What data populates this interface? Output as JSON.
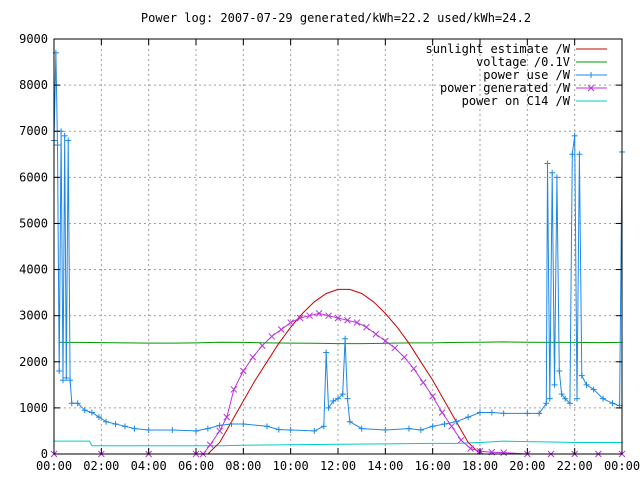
{
  "chart_data": {
    "type": "line",
    "title": "Power log: 2007-07-29 generated/kWh=22.2 used/kWh=24.2",
    "xlabel": "",
    "ylabel": "",
    "x_unit": "hours since 00:00",
    "xlim": [
      0,
      24
    ],
    "ylim": [
      0,
      9000
    ],
    "x_ticks": [
      {
        "value": 0,
        "label": "00:00"
      },
      {
        "value": 2,
        "label": "02:00"
      },
      {
        "value": 4,
        "label": "04:00"
      },
      {
        "value": 6,
        "label": "06:00"
      },
      {
        "value": 8,
        "label": "08:00"
      },
      {
        "value": 10,
        "label": "10:00"
      },
      {
        "value": 12,
        "label": "12:00"
      },
      {
        "value": 14,
        "label": "14:00"
      },
      {
        "value": 16,
        "label": "16:00"
      },
      {
        "value": 18,
        "label": "18:00"
      },
      {
        "value": 20,
        "label": "20:00"
      },
      {
        "value": 22,
        "label": "22:00"
      },
      {
        "value": 24,
        "label": "00:00"
      }
    ],
    "y_ticks": [
      {
        "value": 0,
        "label": "0"
      },
      {
        "value": 1000,
        "label": "1000"
      },
      {
        "value": 2000,
        "label": "2000"
      },
      {
        "value": 3000,
        "label": "3000"
      },
      {
        "value": 4000,
        "label": "4000"
      },
      {
        "value": 5000,
        "label": "5000"
      },
      {
        "value": 6000,
        "label": "6000"
      },
      {
        "value": 7000,
        "label": "7000"
      },
      {
        "value": 8000,
        "label": "8000"
      },
      {
        "value": 9000,
        "label": "9000"
      }
    ],
    "grid": true,
    "legend_position": "top-right",
    "series": [
      {
        "name": "sunlight estimate /W",
        "color": "#cc0000",
        "marker": "none",
        "points": [
          [
            6.5,
            0
          ],
          [
            7,
            250
          ],
          [
            7.5,
            700
          ],
          [
            8,
            1150
          ],
          [
            8.5,
            1600
          ],
          [
            9,
            2000
          ],
          [
            9.5,
            2400
          ],
          [
            10,
            2750
          ],
          [
            10.5,
            3050
          ],
          [
            11,
            3300
          ],
          [
            11.5,
            3480
          ],
          [
            12,
            3570
          ],
          [
            12.5,
            3570
          ],
          [
            13,
            3480
          ],
          [
            13.5,
            3300
          ],
          [
            14,
            3050
          ],
          [
            14.5,
            2750
          ],
          [
            15,
            2400
          ],
          [
            15.5,
            2000
          ],
          [
            16,
            1600
          ],
          [
            16.5,
            1150
          ],
          [
            17,
            700
          ],
          [
            17.5,
            250
          ],
          [
            18,
            0
          ]
        ]
      },
      {
        "name": "voltage /0.1V",
        "color": "#009900",
        "marker": "none",
        "points": [
          [
            0.2,
            2420
          ],
          [
            1,
            2420
          ],
          [
            2,
            2415
          ],
          [
            3,
            2410
          ],
          [
            4,
            2405
          ],
          [
            5,
            2405
          ],
          [
            6,
            2410
          ],
          [
            7,
            2425
          ],
          [
            8,
            2420
          ],
          [
            9,
            2410
          ],
          [
            10,
            2405
          ],
          [
            11,
            2400
          ],
          [
            12,
            2395
          ],
          [
            13,
            2395
          ],
          [
            14,
            2400
          ],
          [
            15,
            2410
          ],
          [
            16,
            2410
          ],
          [
            17,
            2420
          ],
          [
            18,
            2425
          ],
          [
            19,
            2430
          ],
          [
            20,
            2425
          ],
          [
            21,
            2420
          ],
          [
            22,
            2420
          ],
          [
            23,
            2415
          ],
          [
            24,
            2420
          ]
        ]
      },
      {
        "name": "power use /W",
        "color": "#1e88e5",
        "marker": "plus",
        "points": [
          [
            0,
            6800
          ],
          [
            0.08,
            8700
          ],
          [
            0.15,
            6700
          ],
          [
            0.22,
            1800
          ],
          [
            0.3,
            7000
          ],
          [
            0.38,
            1600
          ],
          [
            0.45,
            6900
          ],
          [
            0.52,
            1650
          ],
          [
            0.6,
            6800
          ],
          [
            0.68,
            1600
          ],
          [
            0.75,
            1100
          ],
          [
            1.0,
            1100
          ],
          [
            1.3,
            950
          ],
          [
            1.6,
            900
          ],
          [
            1.9,
            800
          ],
          [
            2.2,
            700
          ],
          [
            2.6,
            650
          ],
          [
            3.0,
            600
          ],
          [
            3.4,
            550
          ],
          [
            4.0,
            520
          ],
          [
            5.0,
            520
          ],
          [
            6.0,
            500
          ],
          [
            6.5,
            550
          ],
          [
            7.0,
            620
          ],
          [
            7.5,
            650
          ],
          [
            8.0,
            650
          ],
          [
            9.0,
            600
          ],
          [
            9.5,
            530
          ],
          [
            10.0,
            520
          ],
          [
            11.0,
            500
          ],
          [
            11.4,
            600
          ],
          [
            11.5,
            2200
          ],
          [
            11.6,
            1000
          ],
          [
            11.8,
            1150
          ],
          [
            12.0,
            1200
          ],
          [
            12.2,
            1300
          ],
          [
            12.3,
            2500
          ],
          [
            12.4,
            1200
          ],
          [
            12.5,
            700
          ],
          [
            13.0,
            550
          ],
          [
            14.0,
            520
          ],
          [
            15.0,
            550
          ],
          [
            15.5,
            520
          ],
          [
            16.0,
            600
          ],
          [
            16.5,
            650
          ],
          [
            17.0,
            700
          ],
          [
            17.5,
            800
          ],
          [
            18.0,
            900
          ],
          [
            18.5,
            900
          ],
          [
            19.0,
            880
          ],
          [
            20.0,
            880
          ],
          [
            20.5,
            880
          ],
          [
            20.8,
            1100
          ],
          [
            20.85,
            6300
          ],
          [
            20.95,
            1200
          ],
          [
            21.05,
            6100
          ],
          [
            21.15,
            1500
          ],
          [
            21.25,
            6000
          ],
          [
            21.35,
            1800
          ],
          [
            21.45,
            1300
          ],
          [
            21.6,
            1200
          ],
          [
            21.8,
            1100
          ],
          [
            21.9,
            6500
          ],
          [
            22.0,
            6900
          ],
          [
            22.1,
            1200
          ],
          [
            22.2,
            6500
          ],
          [
            22.3,
            1700
          ],
          [
            22.5,
            1500
          ],
          [
            22.8,
            1400
          ],
          [
            23.2,
            1200
          ],
          [
            23.6,
            1100
          ],
          [
            23.9,
            1050
          ],
          [
            24.0,
            6550
          ]
        ]
      },
      {
        "name": "power generated /W",
        "color": "#b833e0",
        "marker": "cross",
        "points": [
          [
            0,
            0
          ],
          [
            2,
            0
          ],
          [
            4,
            0
          ],
          [
            6,
            0
          ],
          [
            6.3,
            0
          ],
          [
            6.6,
            200
          ],
          [
            7.0,
            500
          ],
          [
            7.3,
            800
          ],
          [
            7.6,
            1400
          ],
          [
            8.0,
            1800
          ],
          [
            8.4,
            2100
          ],
          [
            8.8,
            2350
          ],
          [
            9.2,
            2550
          ],
          [
            9.6,
            2700
          ],
          [
            10.0,
            2850
          ],
          [
            10.4,
            2950
          ],
          [
            10.8,
            3000
          ],
          [
            11.2,
            3050
          ],
          [
            11.6,
            3000
          ],
          [
            12.0,
            2950
          ],
          [
            12.4,
            2900
          ],
          [
            12.8,
            2850
          ],
          [
            13.2,
            2750
          ],
          [
            13.6,
            2600
          ],
          [
            14.0,
            2450
          ],
          [
            14.4,
            2300
          ],
          [
            14.8,
            2100
          ],
          [
            15.2,
            1850
          ],
          [
            15.6,
            1550
          ],
          [
            16.0,
            1250
          ],
          [
            16.4,
            900
          ],
          [
            16.8,
            600
          ],
          [
            17.2,
            300
          ],
          [
            17.6,
            120
          ],
          [
            18.0,
            60
          ],
          [
            18.5,
            40
          ],
          [
            19.0,
            30
          ],
          [
            20.0,
            0
          ],
          [
            21.0,
            0
          ],
          [
            22.0,
            0
          ],
          [
            23.0,
            0
          ],
          [
            24.0,
            0
          ]
        ]
      },
      {
        "name": "power on C14 /W",
        "color": "#00cccc",
        "marker": "none",
        "points": [
          [
            0,
            280
          ],
          [
            1.5,
            280
          ],
          [
            1.6,
            180
          ],
          [
            2,
            180
          ],
          [
            4,
            180
          ],
          [
            6,
            180
          ],
          [
            7,
            180
          ],
          [
            8,
            190
          ],
          [
            10,
            200
          ],
          [
            12,
            210
          ],
          [
            14,
            220
          ],
          [
            16,
            230
          ],
          [
            17,
            230
          ],
          [
            18,
            250
          ],
          [
            19,
            280
          ],
          [
            20,
            270
          ],
          [
            21,
            260
          ],
          [
            22,
            250
          ],
          [
            23,
            250
          ],
          [
            24,
            250
          ]
        ]
      }
    ]
  }
}
